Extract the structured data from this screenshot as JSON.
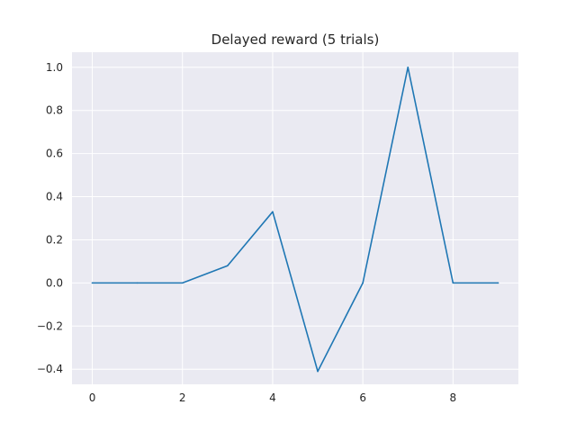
{
  "chart_data": {
    "type": "line",
    "title": "Delayed reward (5 trials)",
    "xlabel": "",
    "ylabel": "",
    "x": [
      0,
      1,
      2,
      3,
      4,
      5,
      6,
      7,
      8,
      9
    ],
    "series": [
      {
        "values": [
          0.0,
          0.0,
          0.0,
          0.08,
          0.33,
          -0.41,
          0.0,
          1.0,
          0.0,
          0.0
        ],
        "color": "#1f77b4"
      }
    ],
    "xlim": [
      -0.45,
      9.45
    ],
    "ylim": [
      -0.47,
      1.07
    ],
    "x_ticks": [
      0,
      2,
      4,
      6,
      8
    ],
    "x_tick_labels": [
      "0",
      "2",
      "4",
      "6",
      "8"
    ],
    "y_ticks": [
      -0.4,
      -0.2,
      0.0,
      0.2,
      0.4,
      0.6,
      0.8,
      1.0
    ],
    "y_tick_labels": [
      "−0.4",
      "−0.2",
      "0.0",
      "0.2",
      "0.4",
      "0.6",
      "0.8",
      "1.0"
    ],
    "grid": true,
    "style": {
      "background": "#eaeaf2",
      "grid_color": "#ffffff"
    }
  }
}
